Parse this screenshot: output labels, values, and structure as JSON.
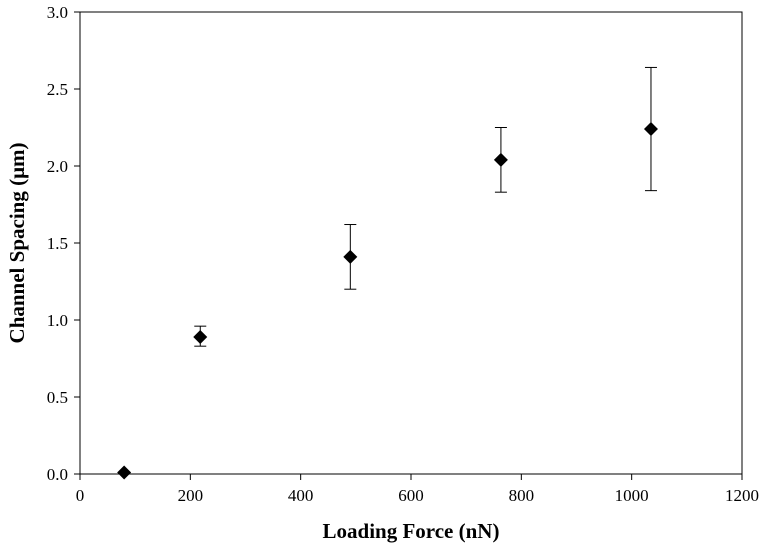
{
  "chart_data": {
    "type": "scatter",
    "title": "",
    "xlabel": "Loading Force (nN)",
    "ylabel": "Channel Spacing (μm)",
    "xlim": [
      0,
      1200
    ],
    "ylim": [
      0,
      3.0
    ],
    "x_ticks": [
      "0",
      "200",
      "400",
      "600",
      "800",
      "1000",
      "1200"
    ],
    "y_ticks": [
      "0.0",
      "0.5",
      "1.0",
      "1.5",
      "2.0",
      "2.5",
      "3.0"
    ],
    "x_tick_values": [
      0,
      200,
      400,
      600,
      800,
      1000,
      1200
    ],
    "y_tick_values": [
      0,
      0.5,
      1.0,
      1.5,
      2.0,
      2.5,
      3.0
    ],
    "grid": false,
    "legend": false,
    "marker": "diamond",
    "marker_color": "#000000",
    "points": [
      {
        "x": 80,
        "y": 0.01,
        "err_low": 0.01,
        "err_high": 0.01
      },
      {
        "x": 218,
        "y": 0.89,
        "err_low": 0.83,
        "err_high": 0.96
      },
      {
        "x": 490,
        "y": 1.41,
        "err_low": 1.2,
        "err_high": 1.62
      },
      {
        "x": 763,
        "y": 2.04,
        "err_low": 1.83,
        "err_high": 2.25
      },
      {
        "x": 1035,
        "y": 2.24,
        "err_low": 1.84,
        "err_high": 2.64
      }
    ]
  }
}
